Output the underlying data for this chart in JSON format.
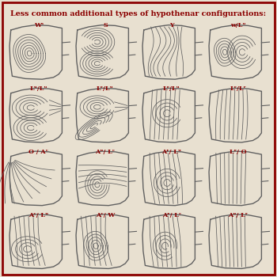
{
  "title": "Less common additional types of hypothenar configurations:",
  "title_color": "#8B0000",
  "title_fontsize": 6.8,
  "bg_color": "#e8e0d0",
  "border_color": "#8B0000",
  "border_lw": 2.0,
  "line_color": "#606060",
  "line_lw": 0.55,
  "label_color": "#8B0000",
  "label_fontsize": 5.8,
  "cell_labels": [
    [
      "Wˢ",
      "S",
      "Y",
      "w/Lᵘ"
    ],
    [
      "Lᵘ/Lᵘ",
      "Lʳ/Lᵘ",
      "Lʳ/Lᵘ",
      "Lʳ/Lʳ"
    ],
    [
      "O / Aᶜ",
      "Aᵘ/ Lᶜ",
      "Aʳ/ Lᵘ",
      "Lʳ/ O"
    ],
    [
      "Aᶜ/ Lᵘ",
      "Aᶜ/ W",
      "Aʳ/ Lᶜ",
      "Aᵘ/ Lʳ"
    ]
  ]
}
